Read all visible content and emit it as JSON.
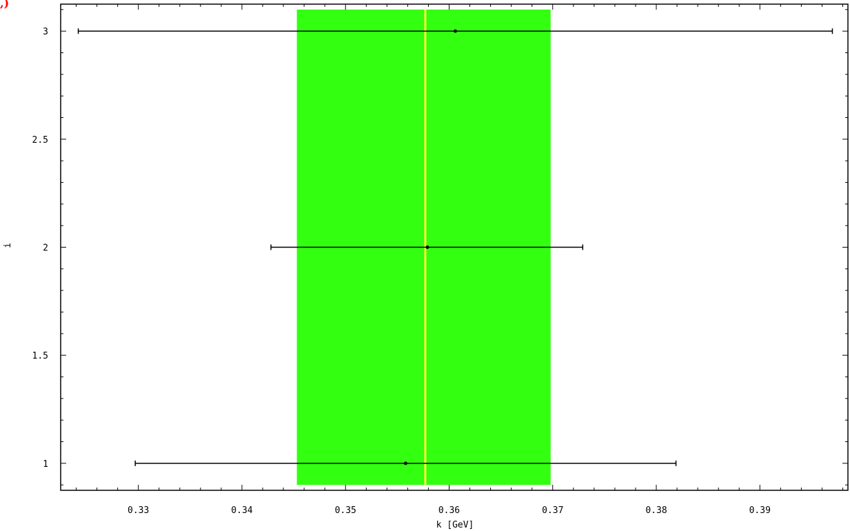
{
  "chart_data": {
    "type": "scatter",
    "xlabel": "k [GeV]",
    "ylabel": "i",
    "xlim": [
      0.3225,
      0.3985
    ],
    "ylim": [
      0.875,
      3.125
    ],
    "x_ticks": [
      {
        "value": 0.33,
        "label": "0.33"
      },
      {
        "value": 0.34,
        "label": "0.34"
      },
      {
        "value": 0.35,
        "label": "0.35"
      },
      {
        "value": 0.36,
        "label": "0.36"
      },
      {
        "value": 0.37,
        "label": "0.37"
      },
      {
        "value": 0.38,
        "label": "0.38"
      },
      {
        "value": 0.39,
        "label": "0.39"
      }
    ],
    "y_ticks": [
      {
        "value": 1,
        "label": "1"
      },
      {
        "value": 1.5,
        "label": "1.5"
      },
      {
        "value": 2,
        "label": "2"
      },
      {
        "value": 2.5,
        "label": "2.5"
      },
      {
        "value": 3,
        "label": "3"
      }
    ],
    "points": [
      {
        "i": 1,
        "k": 0.3558,
        "k_low": 0.3297,
        "k_high": 0.3819
      },
      {
        "i": 2,
        "k": 0.3579,
        "k_low": 0.3428,
        "k_high": 0.3729
      },
      {
        "i": 3,
        "k": 0.3606,
        "k_low": 0.3242,
        "k_high": 0.397
      }
    ],
    "band": {
      "k_low": 0.3453,
      "k_high": 0.3698,
      "i_low": 0.9,
      "i_high": 3.1,
      "color": "#33ff11"
    },
    "mean_line": {
      "k": 0.3577,
      "color": "#ffff33"
    },
    "grid": false,
    "corner_mark": ",)",
    "colors": {
      "errorbar": "#000000",
      "frame": "#000000",
      "corner_mark": "#ff0000"
    }
  }
}
